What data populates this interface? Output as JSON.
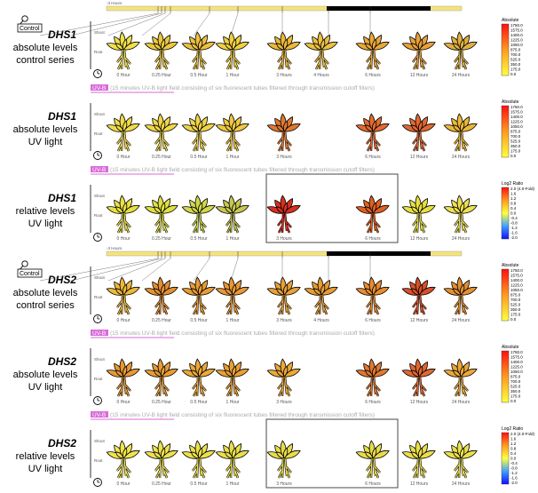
{
  "timeline_label": "-3 Hours",
  "organ_labels": {
    "shoot": "Shoot",
    "root": "Root"
  },
  "time_labels": [
    "0 Hour",
    "0.25 Hour",
    "0.5 Hour",
    "1 Hour",
    "3 Hours",
    "4 Hours",
    "6 Hours",
    "12 Hours",
    "24 Hours"
  ],
  "uvb_label": "UV-B",
  "uvb_note": "(15 minutes UV-B light field consisting of six fluorescent tubes filtered through transmission cutoff filters)",
  "control_label": "Control",
  "legends": {
    "absolute": {
      "title": "Absolute",
      "ticks": [
        "1750.0",
        "1575.0",
        "1400.0",
        "1225.0",
        "1050.0",
        "875.0",
        "700.0",
        "525.0",
        "350.0",
        "175.0",
        "0.0"
      ]
    },
    "relative": {
      "title": "Log2 Ratio",
      "ticks": [
        "2.0  (4.0-Fold)",
        "1.6",
        "1.2",
        "0.8",
        "0.4",
        "0.0",
        "-0.4",
        "-0.8",
        "-1.2",
        "-1.6",
        "-2.0"
      ]
    }
  },
  "colors": {
    "bar_yellow": "#f5e27a",
    "bar_black": "#000000",
    "uvb": "#d86ad8"
  },
  "panels": [
    {
      "gene": "DHS1",
      "desc1": "absolute levels",
      "desc2": "control series",
      "kind": "control",
      "legend": "absolute",
      "cells": [
        "#f0e04a",
        "#ecc83c",
        "#ecc040",
        "#f0d040",
        "#ecb838",
        "#ecc040",
        "#e8a838",
        "#e8a038",
        "#e0b040"
      ],
      "missing": []
    },
    {
      "gene": "DHS1",
      "desc1": "absolute levels",
      "desc2": "UV light",
      "kind": "uv",
      "legend": "absolute",
      "cells": [
        "#f0dc48",
        "#f0d848",
        "#f0d448",
        "#f0c840",
        "#e07830",
        "",
        "#e46a30",
        "#e06830",
        "#ecb838"
      ],
      "missing": [
        5
      ]
    },
    {
      "gene": "DHS1",
      "desc1": "relative levels",
      "desc2": "UV light",
      "kind": "uv-box",
      "legend": "relative",
      "cells": [
        "#e8e040",
        "#e0e040",
        "#d0d848",
        "#c8c850",
        "#d83020",
        "",
        "#e06020",
        "#e8e040",
        "#eee050"
      ],
      "missing": [
        5
      ]
    },
    {
      "gene": "DHS2",
      "desc1": "absolute levels",
      "desc2": "control series",
      "kind": "control",
      "legend": "absolute",
      "cells": [
        "#ecb838",
        "#e49030",
        "#e89c34",
        "#e89834",
        "#e8a038",
        "#e89c34",
        "#e88c30",
        "#d85028",
        "#e49030"
      ],
      "missing": []
    },
    {
      "gene": "DHS2",
      "desc1": "absolute levels",
      "desc2": "UV light",
      "kind": "uv",
      "legend": "absolute",
      "cells": [
        "#e89834",
        "#e89c34",
        "#eca838",
        "#e8a034",
        "#eca838",
        "",
        "#e07830",
        "#e06830",
        "#eca838"
      ],
      "missing": [
        5
      ]
    },
    {
      "gene": "DHS2",
      "desc1": "relative levels",
      "desc2": "UV light",
      "kind": "uv-box",
      "legend": "relative",
      "cells": [
        "#f0e44e",
        "#eee24c",
        "#ece04a",
        "#eadf4a",
        "#e8dc48",
        "",
        "#e8dc48",
        "#eade4a",
        "#ece04a"
      ],
      "missing": [
        5
      ]
    }
  ]
}
